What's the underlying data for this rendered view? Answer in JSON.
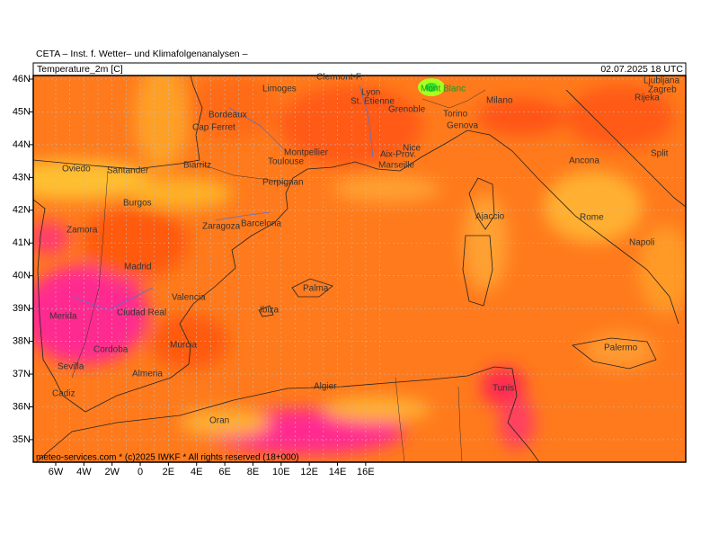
{
  "header": {
    "institute": "CETA – Inst. f. Wetter– und Klimafolgenanalysen –",
    "title": "Temperature_2m [C]",
    "valid_time": "02.07.2025 18 UTC"
  },
  "latitude_labels": [
    "46N",
    "45N",
    "44N",
    "43N",
    "42N",
    "41N",
    "40N",
    "39N",
    "38N",
    "37N",
    "36N",
    "35N"
  ],
  "longitude_labels": [
    "6W",
    "4W",
    "2W",
    "0",
    "2E",
    "4E",
    "6E",
    "8E",
    "10E",
    "12E",
    "14E",
    "16E"
  ],
  "places": [
    "Clermont-F.",
    "Limoges",
    "Lyon",
    "St. Etienne",
    "Mont Blanc",
    "Milano",
    "Ljubljana",
    "Zagreb",
    "Rijeka",
    "Bordeaux",
    "Grenoble",
    "Torino",
    "Genova",
    "Cap Ferret",
    "Montpellier",
    "Nice",
    "Toulouse",
    "Aix-Prov.",
    "Marseille",
    "Ancona",
    "Split",
    "Oviedo",
    "Santander",
    "Biarritz",
    "Perpignan",
    "Burgos",
    "Ajaccio",
    "Rome",
    "Zaragoza",
    "Barcelona",
    "Zamora",
    "Napoli",
    "Madrid",
    "Palma",
    "Valencia",
    "Merida",
    "Ciudad Real",
    "Ibiza",
    "Murcia",
    "Palermo",
    "Cordoba",
    "Sevilla",
    "Almeria",
    "Tunis",
    "Algier",
    "Cadiz",
    "Oran"
  ],
  "footer": "meteo-services.com * (c)2025 IWKF * All rights reserved (18+000)"
}
